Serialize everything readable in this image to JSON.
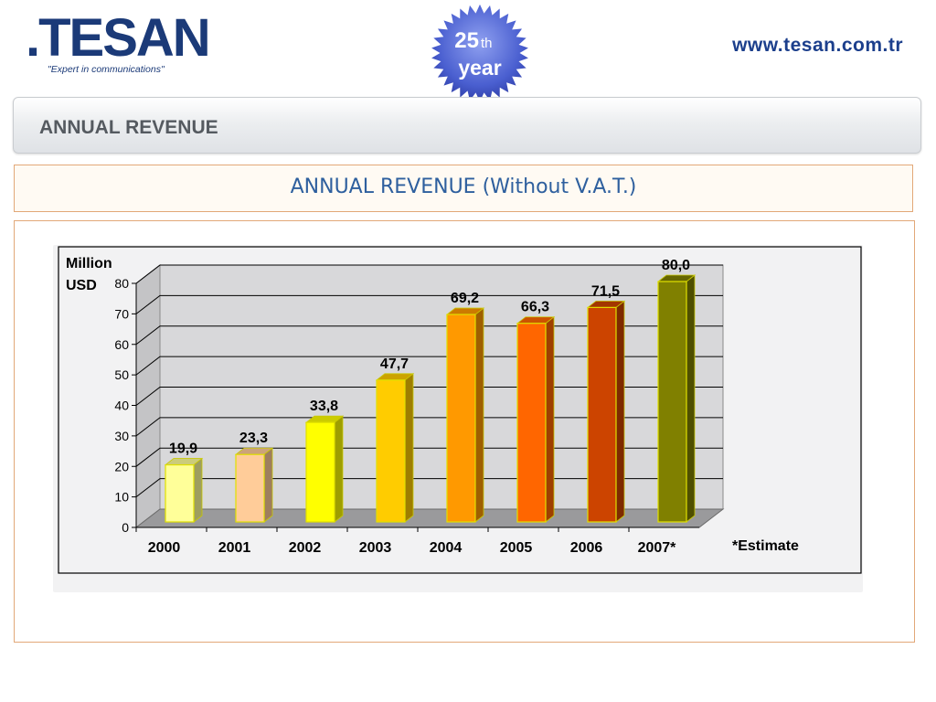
{
  "header": {
    "logo_text": ".TESAN",
    "logo_tagline": "\"Expert in communications\"",
    "badge_number": "25",
    "badge_suffix": "th",
    "badge_word": "year",
    "url": "www.tesan.com.tr"
  },
  "section_title": "ANNUAL REVENUE",
  "chart_heading": "ANNUAL REVENUE (Without V.A.T.)",
  "colors": {
    "brand_blue": "#1b3a78",
    "heading_blue": "#2e5f9e",
    "panel_border": "#e2a878"
  },
  "chart_data": {
    "type": "bar",
    "title": "",
    "ylabel": "Million USD",
    "xlabel": "",
    "categories": [
      "2000",
      "2001",
      "2002",
      "2003",
      "2004",
      "2005",
      "2006",
      "2007*"
    ],
    "values": [
      19.9,
      23.3,
      33.8,
      47.7,
      69.2,
      66.3,
      71.5,
      80.0
    ],
    "value_labels": [
      "19,9",
      "23,3",
      "33,8",
      "47,7",
      "69,2",
      "66,3",
      "71,5",
      "80,0"
    ],
    "bar_colors": [
      "#ffff99",
      "#ffcc99",
      "#ffff00",
      "#ffcc00",
      "#ff9900",
      "#ff6600",
      "#cc4400",
      "#808000"
    ],
    "ylim": [
      0,
      80
    ],
    "yticks": [
      0,
      10,
      20,
      30,
      40,
      50,
      60,
      70,
      80
    ],
    "grid": true,
    "three_d": true,
    "annotation": "*Estimate"
  }
}
